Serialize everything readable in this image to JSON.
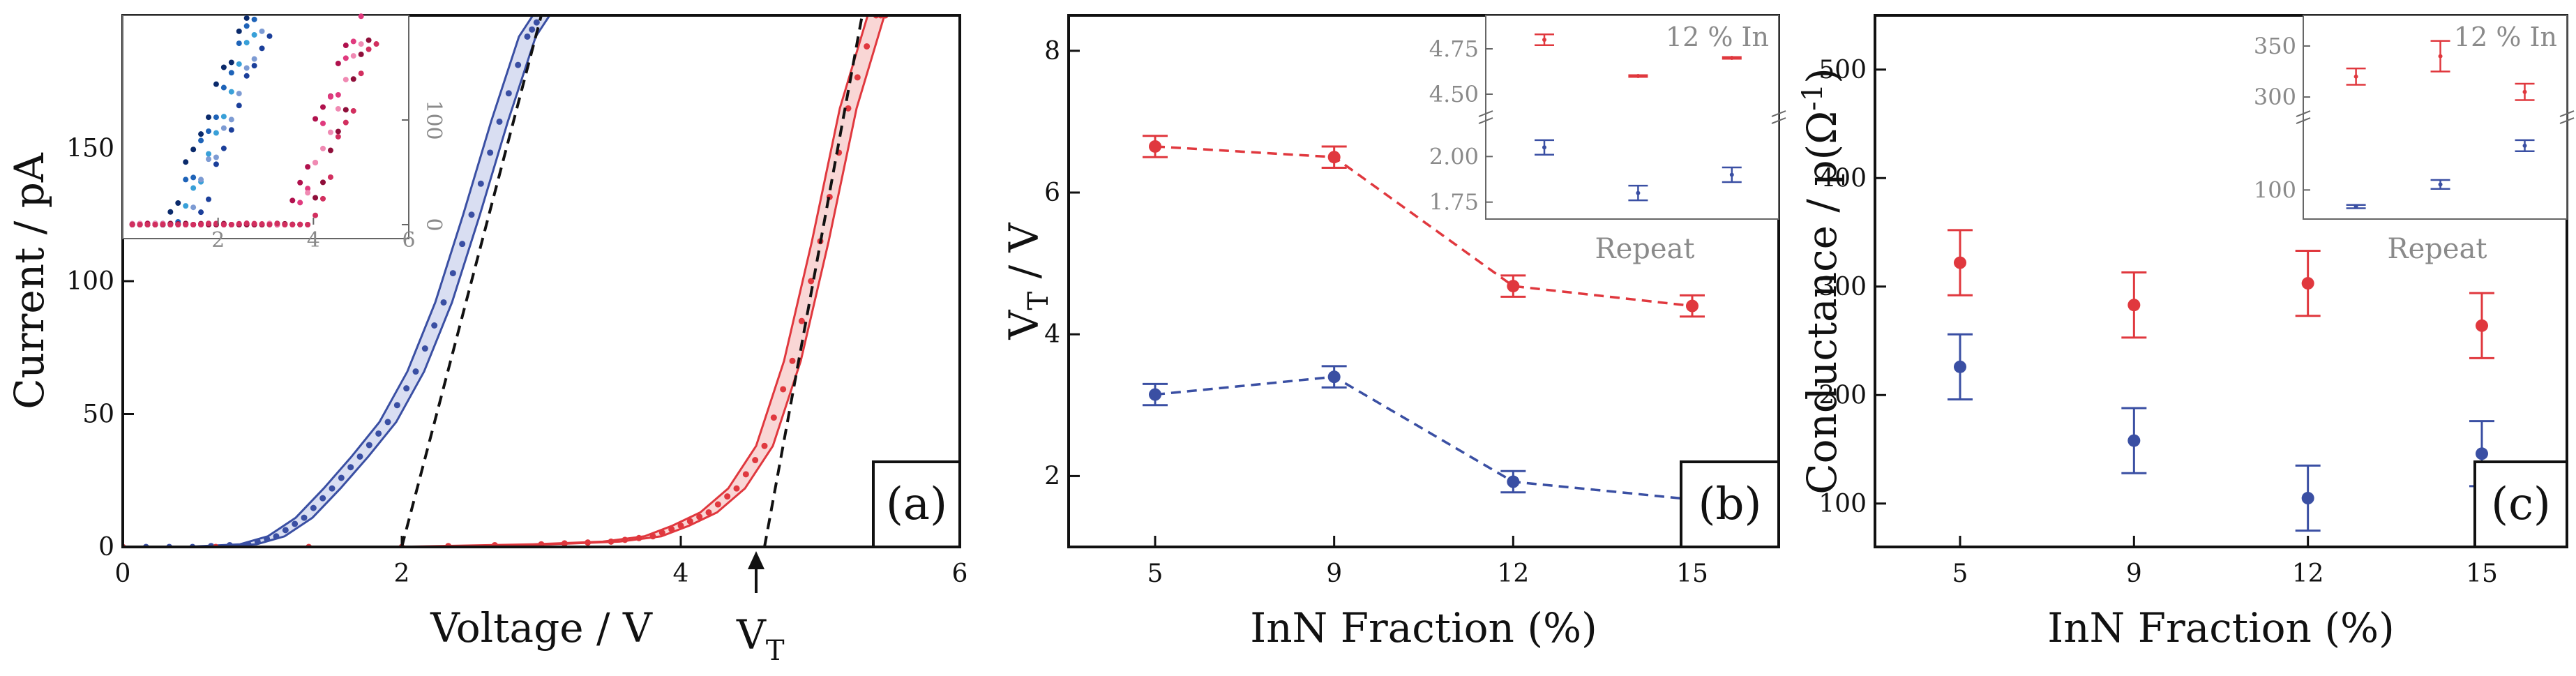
{
  "chart_data": [
    {
      "panel": "(a)",
      "type": "line",
      "xlabel": "Voltage / V",
      "ylabel": "Current / pA",
      "xlim": [
        0,
        6
      ],
      "ylim": [
        0,
        200
      ],
      "xticks": [
        "0",
        "2",
        "4",
        "6"
      ],
      "yticks": [
        "0",
        "50",
        "100",
        "150"
      ],
      "annotation": "V",
      "annotation_sub": "T",
      "colors": {
        "blue": "#3a4fa3",
        "red": "#e0383e"
      },
      "series": [
        {
          "color": "blue",
          "x": [
            0,
            0.5,
            0.9,
            1.1,
            1.3,
            1.5,
            1.7,
            1.9,
            2.1,
            2.3,
            2.5,
            2.7,
            2.9,
            3.0
          ],
          "y": [
            0,
            0,
            1,
            4,
            11,
            22,
            34,
            47,
            66,
            92,
            125,
            160,
            192,
            200
          ]
        },
        {
          "color": "red",
          "x": [
            0,
            2.0,
            3.0,
            3.5,
            3.8,
            4.0,
            4.2,
            4.4,
            4.6,
            4.8,
            5.0,
            5.2,
            5.4,
            5.5
          ],
          "y": [
            0,
            0,
            1,
            2,
            4,
            8,
            13,
            22,
            38,
            70,
            115,
            165,
            200,
            200
          ]
        }
      ],
      "fit_lines": [
        {
          "color": "blue",
          "x": [
            2.0,
            3.0
          ],
          "y": [
            0,
            200
          ]
        },
        {
          "color": "red",
          "x": [
            4.6,
            5.3
          ],
          "y": [
            0,
            200
          ]
        }
      ],
      "inset": {
        "xlim": [
          0,
          6
        ],
        "ylim": [
          0,
          200
        ],
        "xticks": [
          "2",
          "4",
          "6"
        ],
        "yticks": [
          "0",
          "100"
        ]
      }
    },
    {
      "panel": "(b)",
      "type": "line",
      "xlabel": "InN Fraction (%)",
      "ylabel": "V",
      "ylabel_sub": "T",
      "ylabel_suffix": " / V",
      "categories": [
        "5",
        "9",
        "12",
        "15"
      ],
      "ylim": [
        1,
        8.5
      ],
      "yticks": [
        "2",
        "4",
        "6",
        "8"
      ],
      "series": [
        {
          "color": "red",
          "values": [
            6.65,
            6.5,
            4.68,
            4.4
          ],
          "errors": [
            0.15,
            0.15,
            0.15,
            0.15
          ]
        },
        {
          "color": "blue",
          "values": [
            3.15,
            3.4,
            1.92,
            1.67
          ],
          "errors": [
            0.15,
            0.15,
            0.15,
            0.15
          ]
        }
      ],
      "inset": {
        "title": "12 % In",
        "xlabel": "Repeat",
        "yticks": [
          "1.75",
          "2.00",
          "4.50",
          "4.75"
        ],
        "red": {
          "values": [
            4.8,
            4.6,
            4.7
          ],
          "errors": [
            0.03,
            0.005,
            0.005
          ]
        },
        "blue": {
          "values": [
            2.05,
            1.8,
            1.9
          ],
          "errors": [
            0.04,
            0.04,
            0.04
          ]
        }
      }
    },
    {
      "panel": "(c)",
      "type": "scatter",
      "xlabel": "InN Fraction (%)",
      "ylabel": "Conductance / p(Ω",
      "ylabel_sup": "-1",
      "ylabel_suffix": ")",
      "categories": [
        "5",
        "9",
        "12",
        "15"
      ],
      "ylim": [
        60,
        550
      ],
      "yticks": [
        "100",
        "200",
        "300",
        "400",
        "500"
      ],
      "series": [
        {
          "color": "red",
          "values": [
            322,
            283,
            303,
            264
          ],
          "errors": [
            30,
            30,
            30,
            30
          ]
        },
        {
          "color": "blue",
          "values": [
            226,
            158,
            105,
            146
          ],
          "errors": [
            30,
            30,
            30,
            30
          ]
        }
      ],
      "inset": {
        "title": "12 % In",
        "xlabel": "Repeat",
        "yticks": [
          "100",
          "300",
          "350"
        ],
        "red": {
          "values": [
            320,
            340,
            305
          ],
          "errors": [
            8,
            15,
            8
          ]
        },
        "blue": {
          "values": [
            70,
            110,
            180
          ],
          "errors": [
            3,
            8,
            10
          ]
        }
      }
    }
  ]
}
